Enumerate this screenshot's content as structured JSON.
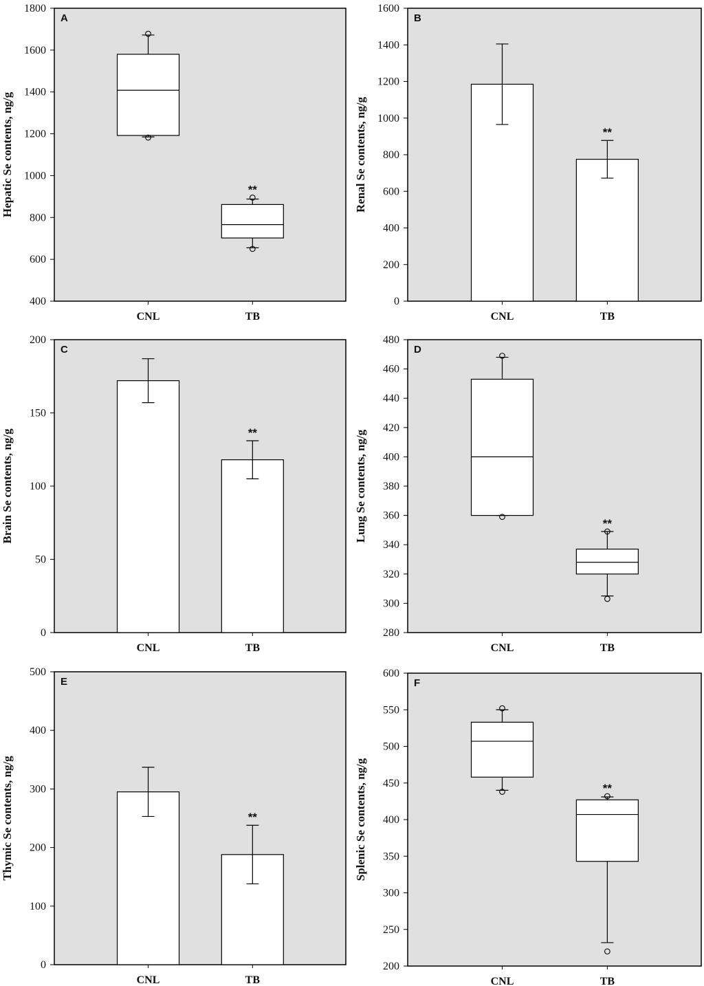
{
  "chart_data": [
    {
      "panel": "A",
      "type": "box",
      "ylabel": "Hepatic Se contents, ng/g",
      "ylim": [
        400,
        1800
      ],
      "yticks": [
        400,
        600,
        800,
        1000,
        1200,
        1400,
        1600,
        1800
      ],
      "categories": [
        "CNL",
        "TB"
      ],
      "boxes": [
        {
          "category": "CNL",
          "whisker_low": 1185,
          "q1": 1192,
          "median": 1408,
          "q3": 1580,
          "whisker_high": 1672,
          "outliers": [
            1182,
            1678
          ]
        },
        {
          "category": "TB",
          "whisker_low": 655,
          "q1": 702,
          "median": 766,
          "q3": 862,
          "whisker_high": 888,
          "outliers": [
            650,
            895
          ]
        }
      ],
      "significance": [
        {
          "category": "TB",
          "label": "**"
        }
      ],
      "background": "#e0e0e0"
    },
    {
      "panel": "B",
      "type": "bar",
      "ylabel": "Renal Se contents, ng/g",
      "ylim": [
        0,
        1600
      ],
      "yticks": [
        0,
        200,
        400,
        600,
        800,
        1000,
        1200,
        1400,
        1600
      ],
      "categories": [
        "CNL",
        "TB"
      ],
      "values": [
        1185,
        775
      ],
      "errors": [
        220,
        103
      ],
      "significance": [
        {
          "category": "TB",
          "label": "**"
        }
      ],
      "background": "#e0e0e0"
    },
    {
      "panel": "C",
      "type": "bar",
      "ylabel": "Brain Se contents, ng/g",
      "ylim": [
        0,
        200
      ],
      "yticks": [
        0,
        50,
        100,
        150,
        200
      ],
      "categories": [
        "CNL",
        "TB"
      ],
      "values": [
        172,
        118
      ],
      "errors": [
        15,
        13
      ],
      "significance": [
        {
          "category": "TB",
          "label": "**"
        }
      ],
      "background": "#e0e0e0"
    },
    {
      "panel": "D",
      "type": "box",
      "ylabel": "Lung Se contents, ng/g",
      "ylim": [
        280,
        480
      ],
      "yticks": [
        280,
        300,
        320,
        340,
        360,
        380,
        400,
        420,
        440,
        460,
        480
      ],
      "categories": [
        "CNL",
        "TB"
      ],
      "boxes": [
        {
          "category": "CNL",
          "whisker_low": 360,
          "q1": 360,
          "median": 400,
          "q3": 453,
          "whisker_high": 468,
          "outliers": [
            359,
            469
          ]
        },
        {
          "category": "TB",
          "whisker_low": 305,
          "q1": 320,
          "median": 328,
          "q3": 337,
          "whisker_high": 349,
          "outliers": [
            303,
            349
          ]
        }
      ],
      "significance": [
        {
          "category": "TB",
          "label": "**"
        }
      ],
      "background": "#e0e0e0"
    },
    {
      "panel": "E",
      "type": "bar",
      "ylabel": "Thymic Se contents, ng/g",
      "ylim": [
        0,
        500
      ],
      "yticks": [
        0,
        100,
        200,
        300,
        400,
        500
      ],
      "categories": [
        "CNL",
        "TB"
      ],
      "values": [
        295,
        188
      ],
      "errors": [
        42,
        50
      ],
      "significance": [
        {
          "category": "TB",
          "label": "**"
        }
      ],
      "background": "#e0e0e0"
    },
    {
      "panel": "F",
      "type": "box",
      "ylabel": "Splenic Se contents, ng/g",
      "ylim": [
        200,
        600
      ],
      "yticks": [
        200,
        250,
        300,
        350,
        400,
        450,
        500,
        550,
        600
      ],
      "categories": [
        "CNL",
        "TB"
      ],
      "boxes": [
        {
          "category": "CNL",
          "whisker_low": 440,
          "q1": 458,
          "median": 507,
          "q3": 533,
          "whisker_high": 550,
          "outliers": [
            438,
            552
          ]
        },
        {
          "category": "TB",
          "whisker_low": 232,
          "q1": 343,
          "median": 407,
          "q3": 427,
          "whisker_high": 431,
          "outliers": [
            220,
            432
          ]
        }
      ],
      "significance": [
        {
          "category": "TB",
          "label": "**"
        }
      ],
      "background": "#e0e0e0"
    }
  ]
}
